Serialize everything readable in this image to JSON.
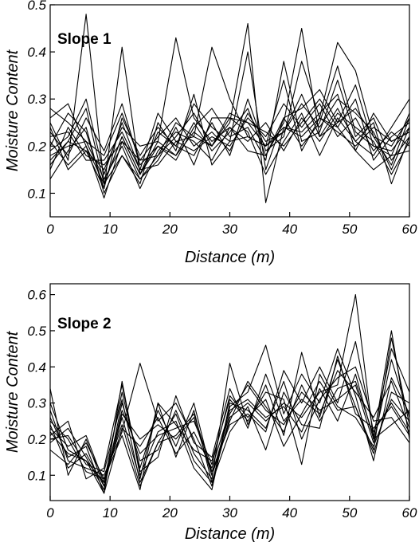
{
  "chart_data": [
    {
      "type": "line",
      "title": "Slope 1",
      "xlabel": "Distance (m)",
      "ylabel": "Moisture Content",
      "xlim": [
        0,
        60
      ],
      "ylim": [
        0.05,
        0.5
      ],
      "xticks": [
        0,
        10,
        20,
        30,
        40,
        50,
        60
      ],
      "yticks": [
        0.1,
        0.2,
        0.3,
        0.4,
        0.5
      ],
      "ytick_labels": [
        "0.1",
        "0.2",
        "0.3",
        "0.4",
        "0.5"
      ],
      "legend": "none",
      "grid": false,
      "x": [
        0,
        3,
        6,
        9,
        12,
        15,
        18,
        21,
        24,
        27,
        30,
        33,
        36,
        39,
        42,
        45,
        48,
        51,
        54,
        57,
        60
      ],
      "series": [
        {
          "values": [
            0.25,
            0.17,
            0.48,
            0.12,
            0.22,
            0.14,
            0.2,
            0.18,
            0.23,
            0.2,
            0.27,
            0.25,
            0.2,
            0.24,
            0.22,
            0.26,
            0.23,
            0.2,
            0.24,
            0.21,
            0.23
          ]
        },
        {
          "values": [
            0.21,
            0.16,
            0.2,
            0.09,
            0.21,
            0.13,
            0.18,
            0.22,
            0.27,
            0.2,
            0.25,
            0.46,
            0.08,
            0.24,
            0.23,
            0.27,
            0.31,
            0.19,
            0.15,
            0.18,
            0.27
          ]
        },
        {
          "values": [
            0.17,
            0.21,
            0.19,
            0.11,
            0.41,
            0.14,
            0.21,
            0.43,
            0.26,
            0.21,
            0.24,
            0.19,
            0.18,
            0.25,
            0.45,
            0.22,
            0.28,
            0.21,
            0.18,
            0.24,
            0.3
          ]
        },
        {
          "values": [
            0.19,
            0.22,
            0.3,
            0.14,
            0.25,
            0.15,
            0.16,
            0.21,
            0.22,
            0.41,
            0.3,
            0.22,
            0.2,
            0.34,
            0.19,
            0.26,
            0.42,
            0.36,
            0.22,
            0.2,
            0.26
          ]
        },
        {
          "values": [
            0.26,
            0.29,
            0.2,
            0.12,
            0.18,
            0.12,
            0.25,
            0.19,
            0.31,
            0.16,
            0.21,
            0.4,
            0.15,
            0.26,
            0.28,
            0.32,
            0.25,
            0.33,
            0.2,
            0.18,
            0.19
          ]
        },
        {
          "values": [
            0.15,
            0.24,
            0.18,
            0.16,
            0.21,
            0.17,
            0.22,
            0.26,
            0.2,
            0.23,
            0.19,
            0.27,
            0.21,
            0.23,
            0.29,
            0.24,
            0.3,
            0.27,
            0.23,
            0.15,
            0.24
          ]
        },
        {
          "values": [
            0.23,
            0.18,
            0.26,
            0.19,
            0.29,
            0.16,
            0.2,
            0.17,
            0.24,
            0.28,
            0.22,
            0.24,
            0.17,
            0.38,
            0.21,
            0.23,
            0.34,
            0.22,
            0.26,
            0.17,
            0.22
          ]
        },
        {
          "values": [
            0.2,
            0.27,
            0.23,
            0.11,
            0.26,
            0.18,
            0.24,
            0.2,
            0.18,
            0.25,
            0.18,
            0.3,
            0.19,
            0.22,
            0.38,
            0.26,
            0.24,
            0.3,
            0.17,
            0.22,
            0.25
          ]
        },
        {
          "values": [
            0.18,
            0.2,
            0.21,
            0.13,
            0.2,
            0.11,
            0.19,
            0.23,
            0.21,
            0.17,
            0.24,
            0.21,
            0.25,
            0.19,
            0.26,
            0.21,
            0.27,
            0.24,
            0.21,
            0.14,
            0.21
          ]
        },
        {
          "values": [
            0.22,
            0.23,
            0.17,
            0.17,
            0.23,
            0.15,
            0.27,
            0.21,
            0.19,
            0.22,
            0.2,
            0.26,
            0.22,
            0.29,
            0.24,
            0.29,
            0.22,
            0.26,
            0.19,
            0.23,
            0.2
          ]
        },
        {
          "values": [
            0.13,
            0.19,
            0.24,
            0.1,
            0.18,
            0.13,
            0.17,
            0.24,
            0.16,
            0.26,
            0.26,
            0.23,
            0.14,
            0.21,
            0.27,
            0.18,
            0.26,
            0.21,
            0.25,
            0.12,
            0.22
          ]
        },
        {
          "values": [
            0.24,
            0.15,
            0.19,
            0.15,
            0.24,
            0.2,
            0.21,
            0.18,
            0.25,
            0.19,
            0.23,
            0.28,
            0.18,
            0.26,
            0.2,
            0.25,
            0.37,
            0.23,
            0.2,
            0.19,
            0.24
          ]
        },
        {
          "values": [
            0.16,
            0.21,
            0.28,
            0.12,
            0.22,
            0.14,
            0.23,
            0.2,
            0.29,
            0.24,
            0.21,
            0.22,
            0.2,
            0.23,
            0.31,
            0.22,
            0.25,
            0.28,
            0.22,
            0.16,
            0.26
          ]
        },
        {
          "values": [
            0.28,
            0.25,
            0.21,
            0.18,
            0.27,
            0.17,
            0.18,
            0.25,
            0.22,
            0.2,
            0.26,
            0.25,
            0.23,
            0.2,
            0.25,
            0.3,
            0.24,
            0.19,
            0.27,
            0.21,
            0.23
          ]
        }
      ]
    },
    {
      "type": "line",
      "title": "Slope 2",
      "xlabel": "Distance (m)",
      "ylabel": "Moisture Content",
      "xlim": [
        0,
        60
      ],
      "ylim": [
        0.03,
        0.63
      ],
      "xticks": [
        0,
        10,
        20,
        30,
        40,
        50,
        60
      ],
      "yticks": [
        0.1,
        0.2,
        0.3,
        0.4,
        0.5,
        0.6
      ],
      "ytick_labels": [
        "0.1",
        "0.2",
        "0.3",
        "0.4",
        "0.5",
        "0.6"
      ],
      "legend": "none",
      "grid": false,
      "x": [
        0,
        3,
        6,
        9,
        12,
        15,
        18,
        21,
        24,
        27,
        30,
        33,
        36,
        39,
        42,
        45,
        48,
        51,
        54,
        57,
        60
      ],
      "series": [
        {
          "values": [
            0.34,
            0.1,
            0.2,
            0.07,
            0.26,
            0.09,
            0.3,
            0.15,
            0.28,
            0.08,
            0.26,
            0.3,
            0.25,
            0.3,
            0.26,
            0.33,
            0.35,
            0.6,
            0.2,
            0.5,
            0.2
          ]
        },
        {
          "values": [
            0.22,
            0.16,
            0.14,
            0.05,
            0.36,
            0.1,
            0.22,
            0.25,
            0.12,
            0.06,
            0.29,
            0.33,
            0.46,
            0.27,
            0.38,
            0.3,
            0.45,
            0.32,
            0.14,
            0.37,
            0.27
          ]
        },
        {
          "values": [
            0.25,
            0.2,
            0.11,
            0.09,
            0.24,
            0.07,
            0.19,
            0.21,
            0.27,
            0.11,
            0.24,
            0.27,
            0.22,
            0.39,
            0.3,
            0.4,
            0.3,
            0.47,
            0.22,
            0.3,
            0.22
          ]
        },
        {
          "values": [
            0.19,
            0.23,
            0.15,
            0.06,
            0.3,
            0.14,
            0.17,
            0.28,
            0.16,
            0.09,
            0.41,
            0.24,
            0.35,
            0.21,
            0.44,
            0.26,
            0.42,
            0.29,
            0.17,
            0.48,
            0.24
          ]
        },
        {
          "values": [
            0.28,
            0.14,
            0.12,
            0.1,
            0.22,
            0.41,
            0.25,
            0.3,
            0.2,
            0.07,
            0.3,
            0.28,
            0.23,
            0.36,
            0.2,
            0.31,
            0.37,
            0.4,
            0.25,
            0.26,
            0.19
          ]
        },
        {
          "values": [
            0.23,
            0.18,
            0.21,
            0.08,
            0.33,
            0.12,
            0.28,
            0.18,
            0.3,
            0.1,
            0.27,
            0.35,
            0.28,
            0.24,
            0.33,
            0.28,
            0.31,
            0.35,
            0.19,
            0.42,
            0.26
          ]
        },
        {
          "values": [
            0.24,
            0.12,
            0.16,
            0.07,
            0.28,
            0.16,
            0.21,
            0.23,
            0.25,
            0.13,
            0.32,
            0.26,
            0.31,
            0.18,
            0.27,
            0.36,
            0.28,
            0.29,
            0.16,
            0.33,
            0.3
          ]
        },
        {
          "values": [
            0.2,
            0.21,
            0.13,
            0.11,
            0.31,
            0.08,
            0.19,
            0.27,
            0.14,
            0.08,
            0.22,
            0.29,
            0.17,
            0.33,
            0.24,
            0.23,
            0.43,
            0.27,
            0.23,
            0.29,
            0.21
          ]
        },
        {
          "values": [
            0.26,
            0.15,
            0.18,
            0.05,
            0.23,
            0.18,
            0.26,
            0.16,
            0.22,
            0.12,
            0.28,
            0.31,
            0.26,
            0.29,
            0.22,
            0.34,
            0.25,
            0.38,
            0.2,
            0.24,
            0.28
          ]
        },
        {
          "values": [
            0.21,
            0.25,
            0.09,
            0.12,
            0.35,
            0.11,
            0.15,
            0.32,
            0.19,
            0.15,
            0.34,
            0.23,
            0.38,
            0.25,
            0.31,
            0.27,
            0.39,
            0.33,
            0.26,
            0.36,
            0.23
          ]
        },
        {
          "values": [
            0.3,
            0.17,
            0.14,
            0.08,
            0.27,
            0.2,
            0.24,
            0.2,
            0.26,
            0.1,
            0.25,
            0.36,
            0.29,
            0.22,
            0.35,
            0.25,
            0.34,
            0.36,
            0.21,
            0.45,
            0.33
          ]
        },
        {
          "values": [
            0.17,
            0.13,
            0.19,
            0.09,
            0.21,
            0.06,
            0.3,
            0.24,
            0.17,
            0.14,
            0.31,
            0.25,
            0.33,
            0.31,
            0.13,
            0.38,
            0.29,
            0.26,
            0.18,
            0.31,
            0.25
          ]
        }
      ]
    }
  ]
}
